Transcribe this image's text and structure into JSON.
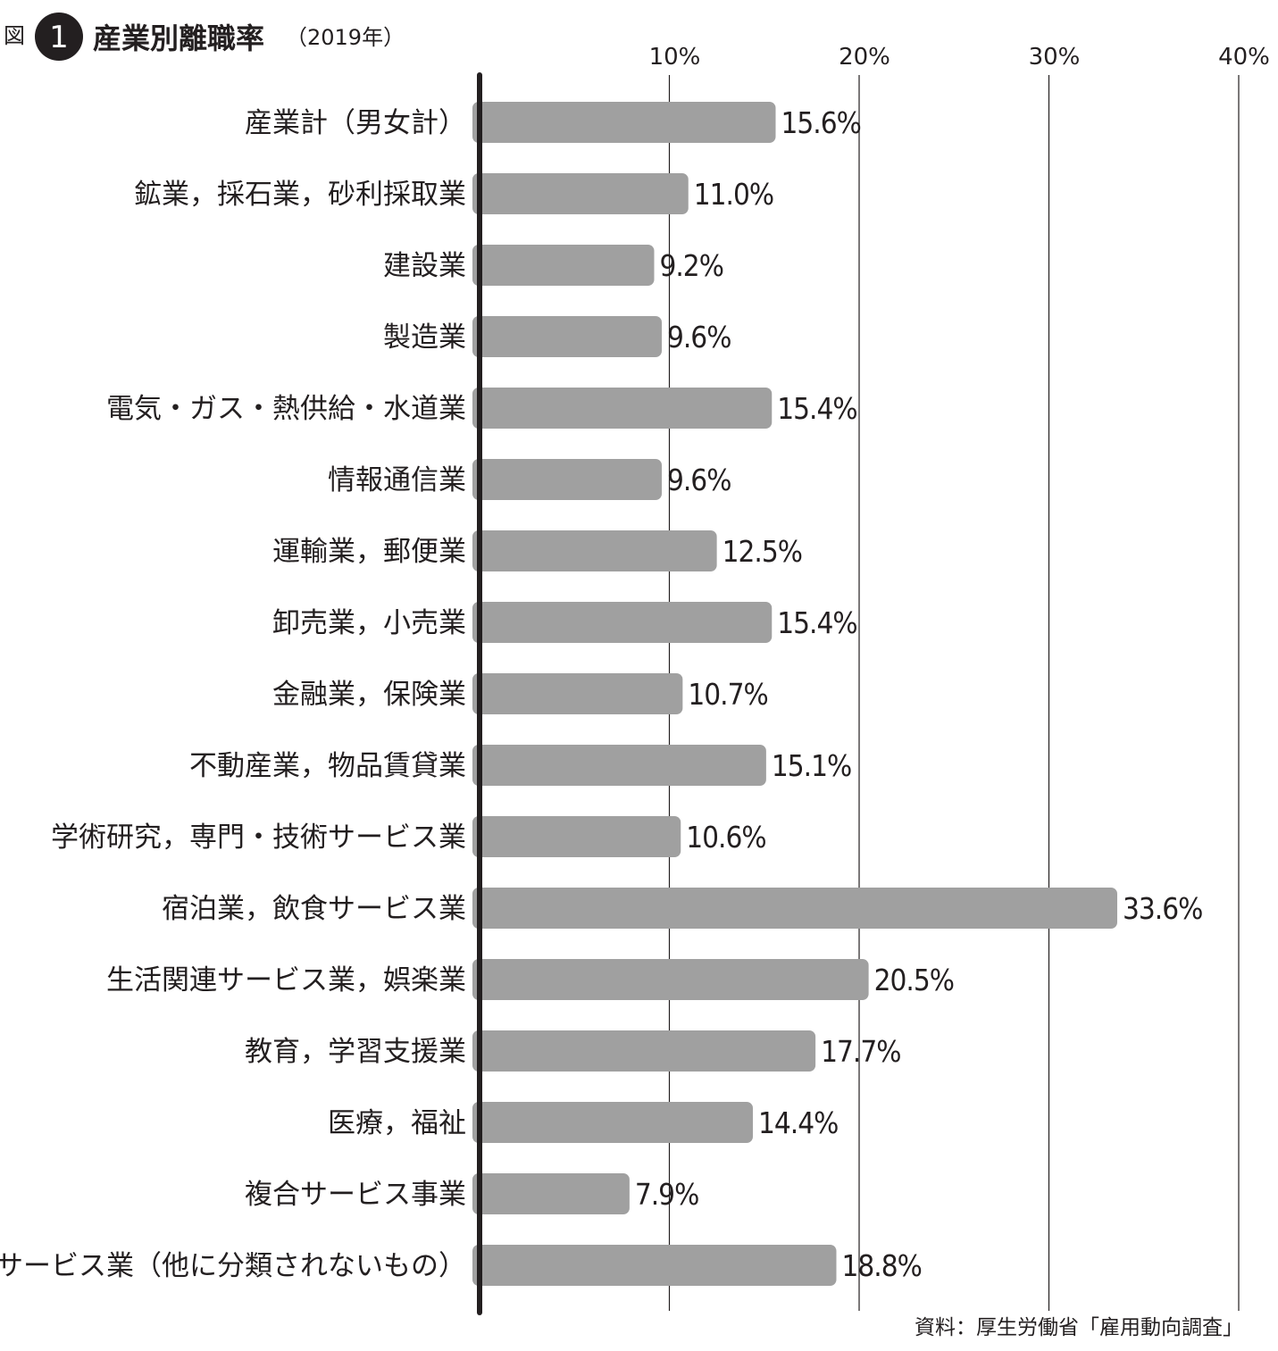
{
  "header": {
    "figure_prefix": "図",
    "figure_number": "1",
    "title": "産業別離職率",
    "subtitle": "（2019年）"
  },
  "source": "資料：厚生労働省「雇用動向調査」",
  "colors": {
    "bar": "#a0a0a0",
    "axis": "#231f20",
    "grid": "#231f20",
    "text": "#231f20"
  },
  "chart_data": {
    "type": "bar",
    "orientation": "horizontal",
    "title": "産業別離職率",
    "subtitle": "（2019年）",
    "xlim": [
      0,
      40
    ],
    "unit": "%",
    "ticks": [
      10,
      20,
      30,
      40
    ],
    "tick_labels": [
      "10%",
      "20%",
      "30%",
      "40%"
    ],
    "grid": true,
    "categories": [
      "産業計（男女計）",
      "鉱業，採石業，砂利採取業",
      "建設業",
      "製造業",
      "電気・ガス・熱供給・水道業",
      "情報通信業",
      "運輸業，郵便業",
      "卸売業，小売業",
      "金融業，保険業",
      "不動産業，物品賃貸業",
      "学術研究，専門・技術サービス業",
      "宿泊業，飲食サービス業",
      "生活関連サービス業，娯楽業",
      "教育，学習支援業",
      "医療，福祉",
      "複合サービス事業",
      "サービス業（他に分類されないもの）"
    ],
    "values": [
      15.6,
      11.0,
      9.2,
      9.6,
      15.4,
      9.6,
      12.5,
      15.4,
      10.7,
      15.1,
      10.6,
      33.6,
      20.5,
      17.7,
      14.4,
      7.9,
      18.8
    ],
    "value_labels": [
      "15.6%",
      "11.0%",
      "9.2%",
      "9.6%",
      "15.4%",
      "9.6%",
      "12.5%",
      "15.4%",
      "10.7%",
      "15.1%",
      "10.6%",
      "33.6%",
      "20.5%",
      "17.7%",
      "14.4%",
      "7.9%",
      "18.8%"
    ]
  }
}
